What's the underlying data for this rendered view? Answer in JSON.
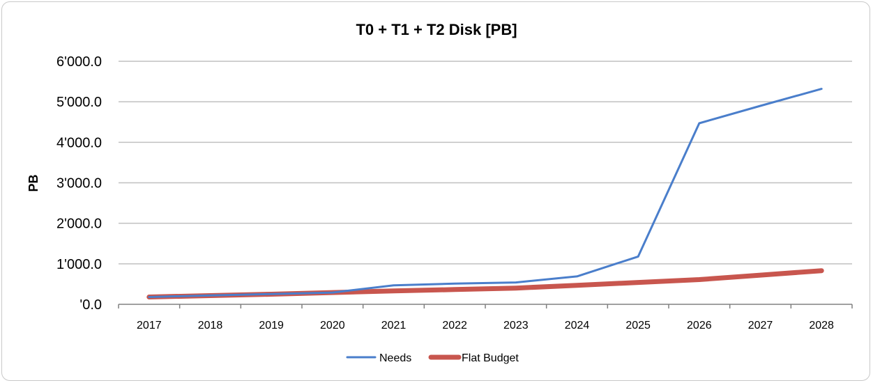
{
  "chart_data": {
    "type": "line",
    "title": "T0 + T1 + T2 Disk [PB]",
    "xlabel": "",
    "ylabel": "PB",
    "categories": [
      "2017",
      "2018",
      "2019",
      "2020",
      "2021",
      "2022",
      "2023",
      "2024",
      "2025",
      "2026",
      "2027",
      "2028"
    ],
    "y_ticks": [
      0,
      1000,
      2000,
      3000,
      4000,
      5000,
      6000
    ],
    "y_tick_labels": [
      "'0.0",
      "1'000.0",
      "2'000.0",
      "3'000.0",
      "4'000.0",
      "5'000.0",
      "6'000.0"
    ],
    "ylim": [
      0,
      6000
    ],
    "grid": true,
    "legend_position": "bottom",
    "series": [
      {
        "name": "Needs",
        "color": "#4a7ecb",
        "values": [
          180,
          220,
          255,
          290,
          470,
          510,
          540,
          690,
          1180,
          4470,
          4900,
          5320
        ]
      },
      {
        "name": "Flat Budget",
        "color": "#c8564e",
        "values": [
          180,
          215,
          250,
          290,
          330,
          365,
          400,
          470,
          540,
          610,
          720,
          830
        ]
      }
    ]
  }
}
